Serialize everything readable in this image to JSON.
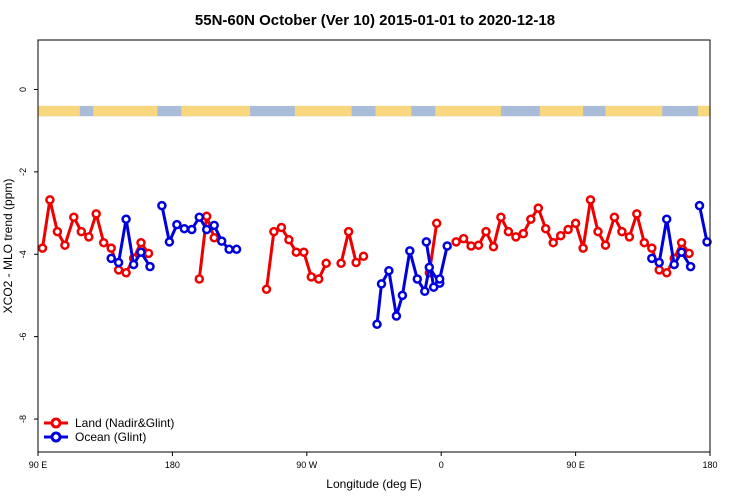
{
  "chart_data": {
    "type": "line",
    "title": "55N-60N October (Ver 10)   2015-01-01 to 2020-12-18",
    "xlabel": "Longitude (deg E)",
    "ylabel": "XCO2 - MLO trend (ppm)",
    "xlim": [
      90,
      540
    ],
    "ylim": [
      -8.8,
      1.2
    ],
    "x_ticks": [
      {
        "value": 90,
        "label": "90 E"
      },
      {
        "value": 180,
        "label": "180"
      },
      {
        "value": 270,
        "label": "90 W"
      },
      {
        "value": 360,
        "label": "0"
      },
      {
        "value": 450,
        "label": "90 E"
      },
      {
        "value": 540,
        "label": "180"
      }
    ],
    "y_ticks": [
      {
        "value": 0,
        "label": "0"
      },
      {
        "value": -2,
        "label": "-2"
      },
      {
        "value": -4,
        "label": "-4"
      },
      {
        "value": -6,
        "label": "-6"
      },
      {
        "value": -8,
        "label": "-8"
      }
    ],
    "legend_position": "bottom-left",
    "land_sea_strip": {
      "y_top": -0.4,
      "y_bottom": -0.65,
      "ocean_color": "#a9bcd9",
      "land_color": "#f9d77e"
    },
    "series": [
      {
        "name": "Land (Nadir&Glint)",
        "color": "#ee0000",
        "segments": [
          [
            [
              93,
              -3.85
            ],
            [
              98,
              -2.68
            ],
            [
              103,
              -3.45
            ],
            [
              108,
              -3.78
            ],
            [
              114,
              -3.1
            ],
            [
              119,
              -3.45
            ],
            [
              124,
              -3.58
            ],
            [
              129,
              -3.02
            ],
            [
              134,
              -3.72
            ],
            [
              139,
              -3.85
            ],
            [
              144,
              -4.38
            ],
            [
              149,
              -4.45
            ],
            [
              154,
              -4.1
            ],
            [
              159,
              -3.72
            ],
            [
              164,
              -3.98
            ]
          ],
          [
            [
              198,
              -4.6
            ],
            [
              203,
              -3.08
            ],
            [
              208,
              -3.6
            ]
          ],
          [
            [
              243,
              -4.85
            ],
            [
              248,
              -3.45
            ],
            [
              253,
              -3.35
            ],
            [
              258,
              -3.65
            ],
            [
              263,
              -3.95
            ],
            [
              268,
              -3.95
            ],
            [
              273,
              -4.55
            ],
            [
              278,
              -4.6
            ],
            [
              283,
              -4.22
            ]
          ],
          [
            [
              293,
              -4.22
            ],
            [
              298,
              -3.45
            ],
            [
              303,
              -4.2
            ],
            [
              308,
              -4.05
            ]
          ],
          [
            [
              352,
              -4.45
            ],
            [
              357,
              -3.25
            ]
          ],
          [
            [
              370,
              -3.7
            ],
            [
              375,
              -3.62
            ],
            [
              380,
              -3.8
            ],
            [
              385,
              -3.78
            ],
            [
              390,
              -3.45
            ],
            [
              395,
              -3.82
            ],
            [
              400,
              -3.1
            ],
            [
              405,
              -3.45
            ],
            [
              410,
              -3.58
            ],
            [
              415,
              -3.5
            ],
            [
              420,
              -3.15
            ],
            [
              425,
              -2.88
            ],
            [
              430,
              -3.38
            ],
            [
              435,
              -3.72
            ],
            [
              440,
              -3.55
            ],
            [
              445,
              -3.4
            ],
            [
              450,
              -3.25
            ],
            [
              455,
              -3.85
            ],
            [
              460,
              -2.68
            ],
            [
              465,
              -3.45
            ],
            [
              470,
              -3.78
            ],
            [
              476,
              -3.1
            ],
            [
              481,
              -3.45
            ],
            [
              486,
              -3.58
            ],
            [
              491,
              -3.02
            ],
            [
              496,
              -3.72
            ],
            [
              501,
              -3.85
            ],
            [
              506,
              -4.38
            ],
            [
              511,
              -4.45
            ],
            [
              516,
              -4.1
            ],
            [
              521,
              -3.72
            ],
            [
              526,
              -3.98
            ]
          ]
        ]
      },
      {
        "name": "Ocean (Glint)",
        "color": "#0000dd",
        "segments": [
          [
            [
              139,
              -4.1
            ],
            [
              144,
              -4.2
            ],
            [
              149,
              -3.15
            ],
            [
              154,
              -4.25
            ],
            [
              159,
              -3.95
            ],
            [
              165,
              -4.3
            ]
          ],
          [
            [
              173,
              -2.82
            ],
            [
              178,
              -3.7
            ],
            [
              183,
              -3.28
            ],
            [
              188,
              -3.38
            ],
            [
              193,
              -3.4
            ],
            [
              198,
              -3.1
            ],
            [
              203,
              -3.4
            ],
            [
              208,
              -3.3
            ],
            [
              213,
              -3.68
            ],
            [
              218,
              -3.88
            ],
            [
              223,
              -3.88
            ]
          ],
          [
            [
              317,
              -5.7
            ],
            [
              320,
              -4.72
            ],
            [
              325,
              -4.4
            ],
            [
              330,
              -5.5
            ],
            [
              334,
              -5.0
            ],
            [
              339,
              -3.92
            ],
            [
              344,
              -4.6
            ],
            [
              349,
              -4.9
            ],
            [
              352,
              -4.32
            ],
            [
              359,
              -4.7
            ]
          ],
          [
            [
              350,
              -3.7
            ],
            [
              355,
              -4.8
            ],
            [
              359,
              -4.6
            ],
            [
              364,
              -3.8
            ]
          ],
          [
            [
              501,
              -4.1
            ],
            [
              506,
              -4.2
            ],
            [
              511,
              -3.15
            ],
            [
              516,
              -4.25
            ],
            [
              521,
              -3.95
            ],
            [
              527,
              -4.3
            ]
          ],
          [
            [
              533,
              -2.82
            ],
            [
              538,
              -3.7
            ]
          ]
        ]
      }
    ]
  }
}
